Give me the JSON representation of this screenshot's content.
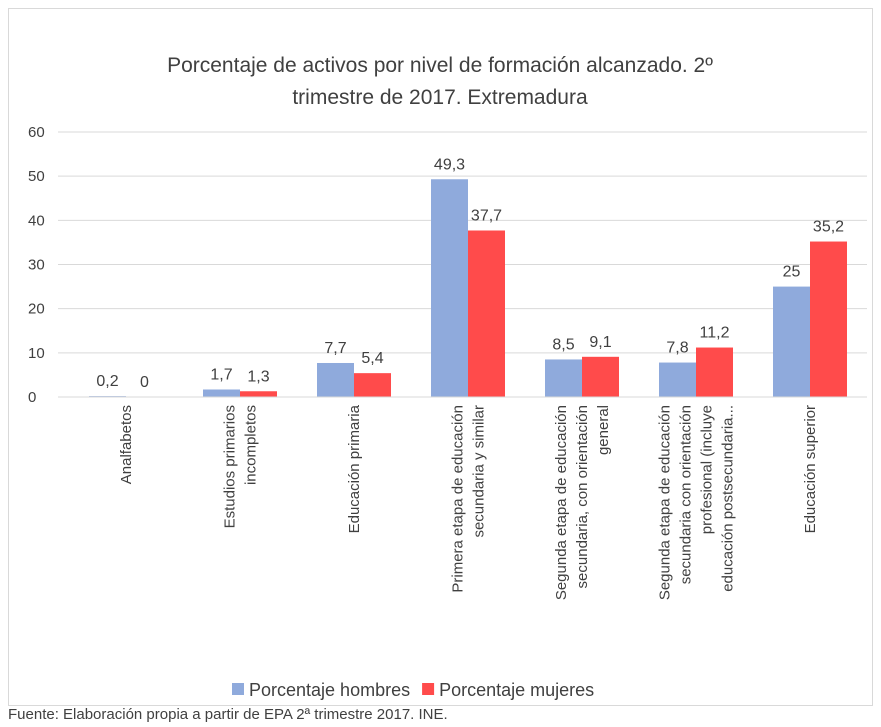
{
  "chart_data": {
    "type": "bar",
    "title": "Porcentaje de activos por nivel de formación alcanzado. 2º trimestre de 2017. Extremadura",
    "categories": [
      "Analfabetos",
      "Estudios primarios incompletos",
      "Educación primaria",
      "Primera etapa de educación secundaria y similar",
      "Segunda etapa de educación secundaria, con orientación general",
      "Segunda etapa de educación secundaria con orientación profesional (incluye educación postsecundaria...",
      "Educación superior"
    ],
    "series": [
      {
        "name": "Porcentaje hombres",
        "color": "#8faadc",
        "values": [
          0.2,
          1.7,
          7.7,
          49.3,
          8.5,
          7.8,
          25
        ],
        "value_labels": [
          "0,2",
          "1,7",
          "7,7",
          "49,3",
          "8,5",
          "7,8",
          "25"
        ]
      },
      {
        "name": "Porcentaje mujeres",
        "color": "#ff4b4b",
        "values": [
          0,
          1.3,
          5.4,
          37.7,
          9.1,
          11.2,
          35.2
        ],
        "value_labels": [
          "0",
          "1,3",
          "5,4",
          "37,7",
          "9,1",
          "11,2",
          "35,2"
        ]
      }
    ],
    "ylim": [
      0,
      60
    ],
    "yticks": [
      0,
      10,
      20,
      30,
      40,
      50,
      60
    ],
    "grid": true,
    "legend": "bottom",
    "source": "Fuente: Elaboración propia a partir de EPA 2ª trimestre 2017. INE."
  }
}
